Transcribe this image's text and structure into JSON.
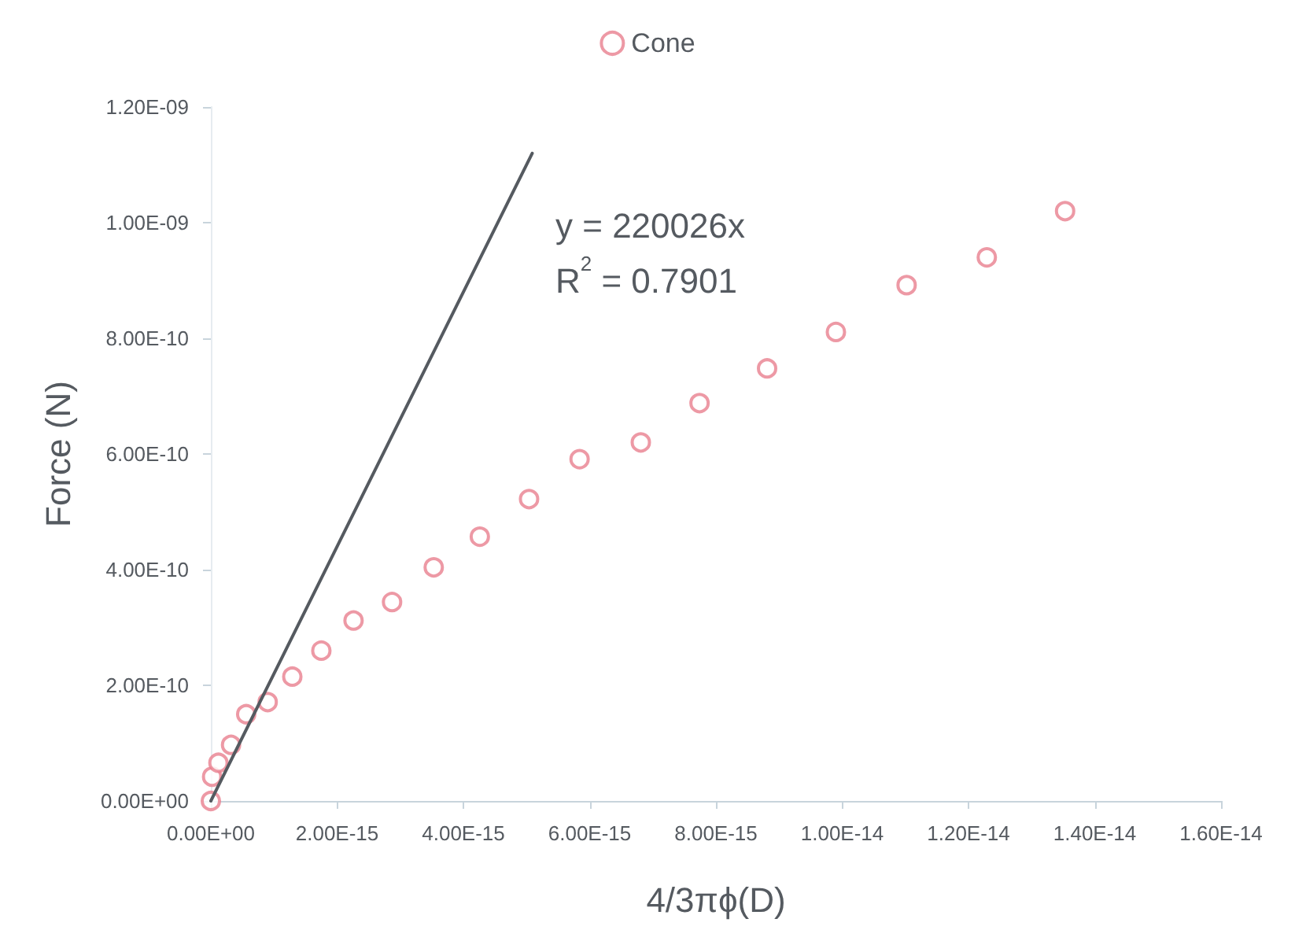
{
  "chart_data": {
    "type": "scatter",
    "xlabel": "4/3πϕ(D)",
    "ylabel": "Force (N)",
    "legend": "top",
    "grid": false,
    "xlim": [
      0,
      1.6e-14
    ],
    "xticks": [
      {
        "value": 0,
        "label": "0.00E+00"
      },
      {
        "value": 2e-15,
        "label": "2.00E-15"
      },
      {
        "value": 4e-15,
        "label": "4.00E-15"
      },
      {
        "value": 6e-15,
        "label": "6.00E-15"
      },
      {
        "value": 8e-15,
        "label": "8.00E-15"
      },
      {
        "value": 1e-14,
        "label": "1.00E-14"
      },
      {
        "value": 1.2e-14,
        "label": "1.20E-14"
      },
      {
        "value": 1.4e-14,
        "label": "1.40E-14"
      },
      {
        "value": 1.6e-14,
        "label": "1.60E-14"
      }
    ],
    "ylim": [
      0,
      1.2e-09
    ],
    "yticks": [
      {
        "value": 0,
        "label": "0.00E+00"
      },
      {
        "value": 2e-10,
        "label": "2.00E-10"
      },
      {
        "value": 4e-10,
        "label": "4.00E-10"
      },
      {
        "value": 6e-10,
        "label": "6.00E-10"
      },
      {
        "value": 8e-10,
        "label": "8.00E-10"
      },
      {
        "value": 1e-09,
        "label": "1.00E-09"
      },
      {
        "value": 1.2e-09,
        "label": "1.20E-09"
      }
    ],
    "annotations": [
      "y = 220026x",
      "R$^{2}$ = 0.7901"
    ],
    "series": [
      {
        "name": "Cone",
        "marker": "circle",
        "color": "#e8808f",
        "x": [
          0,
          2e-17,
          1.2e-16,
          3.2e-16,
          5.6e-16,
          9e-16,
          1.29e-15,
          1.75e-15,
          2.26e-15,
          2.87e-15,
          3.53e-15,
          4.26e-15,
          5.04e-15,
          5.84e-15,
          6.81e-15,
          7.74e-15,
          8.81e-15,
          9.9e-15,
          1.102e-14,
          1.229e-14,
          1.353e-14
        ],
        "values": [
          0,
          4.2e-11,
          6.6e-11,
          9.7e-11,
          1.5e-10,
          1.71e-10,
          2.15e-10,
          2.6e-10,
          3.12e-10,
          3.44e-10,
          4.04e-10,
          4.57e-10,
          5.22e-10,
          5.91e-10,
          6.2e-10,
          6.88e-10,
          7.48e-10,
          8.11e-10,
          8.92e-10,
          9.4e-10,
          1.02e-09
        ]
      },
      {
        "type": "line",
        "marker": "none",
        "color": "#555a60",
        "x": [
          0,
          5.09e-15
        ],
        "values": [
          0,
          1.12e-09
        ]
      }
    ]
  }
}
